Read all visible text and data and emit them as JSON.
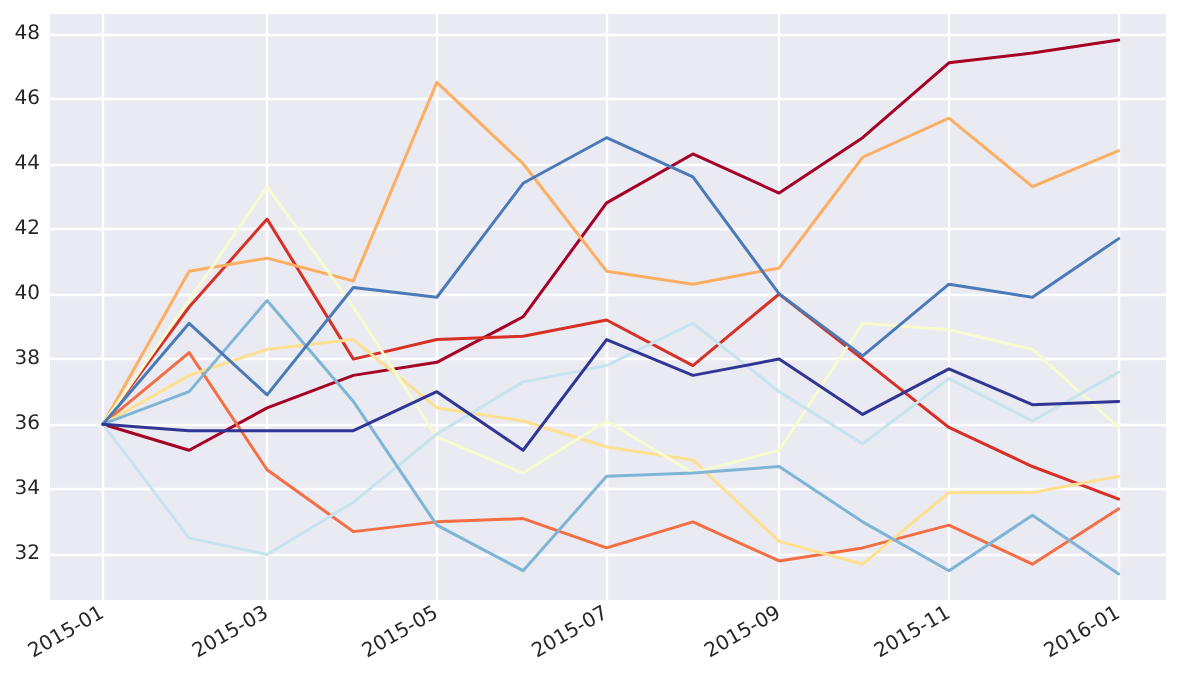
{
  "chart_data": {
    "type": "line",
    "x": [
      "2015-01",
      "2015-02",
      "2015-03",
      "2015-04",
      "2015-05",
      "2015-06",
      "2015-07",
      "2015-08",
      "2015-09",
      "2015-10",
      "2015-11",
      "2015-12",
      "2016-01"
    ],
    "series": [
      {
        "color": "#a50026",
        "values": [
          36,
          35.2,
          36.5,
          37.5,
          37.9,
          39.3,
          42.8,
          44.3,
          43.1,
          44.8,
          47.1,
          47.4,
          47.8
        ]
      },
      {
        "color": "#d73027",
        "values": [
          36,
          39.6,
          42.3,
          38.0,
          38.6,
          38.7,
          39.2,
          37.8,
          40.0,
          38.0,
          35.9,
          34.7,
          33.7
        ]
      },
      {
        "color": "#f46d43",
        "values": [
          36,
          38.2,
          34.6,
          32.7,
          33.0,
          33.1,
          32.2,
          33.0,
          31.8,
          32.2,
          32.9,
          31.7,
          33.4
        ]
      },
      {
        "color": "#fdae61",
        "values": [
          36,
          40.7,
          41.1,
          40.4,
          46.5,
          44.0,
          40.7,
          40.3,
          40.8,
          44.2,
          45.4,
          43.3,
          44.4
        ]
      },
      {
        "color": "#fee090",
        "values": [
          36,
          37.5,
          38.3,
          38.6,
          36.5,
          36.1,
          35.3,
          34.9,
          32.4,
          31.7,
          33.9,
          33.9,
          34.4
        ]
      },
      {
        "color": "#f6fbd0",
        "values": [
          36,
          39.8,
          43.3,
          39.6,
          35.6,
          34.5,
          36.1,
          34.5,
          35.2,
          39.1,
          38.9,
          38.3,
          35.9
        ]
      },
      {
        "color": "#c6e4ee",
        "values": [
          36,
          32.5,
          32.0,
          33.6,
          35.7,
          37.3,
          37.8,
          39.1,
          37.0,
          35.4,
          37.4,
          36.1,
          37.6
        ]
      },
      {
        "color": "#7eb5d6",
        "values": [
          36,
          37.0,
          39.8,
          36.7,
          32.9,
          31.5,
          34.4,
          34.5,
          34.7,
          33.0,
          31.5,
          33.2,
          31.4
        ]
      },
      {
        "color": "#4a7ab7",
        "values": [
          36,
          39.1,
          36.9,
          40.2,
          39.9,
          43.4,
          44.8,
          43.6,
          40.0,
          38.1,
          40.3,
          39.9,
          41.7
        ]
      },
      {
        "color": "#313695",
        "values": [
          36,
          35.8,
          35.8,
          35.8,
          37.0,
          35.2,
          38.6,
          37.5,
          38.0,
          36.3,
          37.7,
          36.6,
          36.7
        ]
      }
    ],
    "xlim": [
      "2014-12-13",
      "2016-01-18"
    ],
    "xticks": [
      "2015-01",
      "2015-03",
      "2015-05",
      "2015-07",
      "2015-09",
      "2015-11",
      "2016-01"
    ],
    "ylim": [
      30.6,
      48.6
    ],
    "yticks": [
      32,
      34,
      36,
      38,
      40,
      42,
      44,
      46,
      48
    ],
    "grid": true
  }
}
